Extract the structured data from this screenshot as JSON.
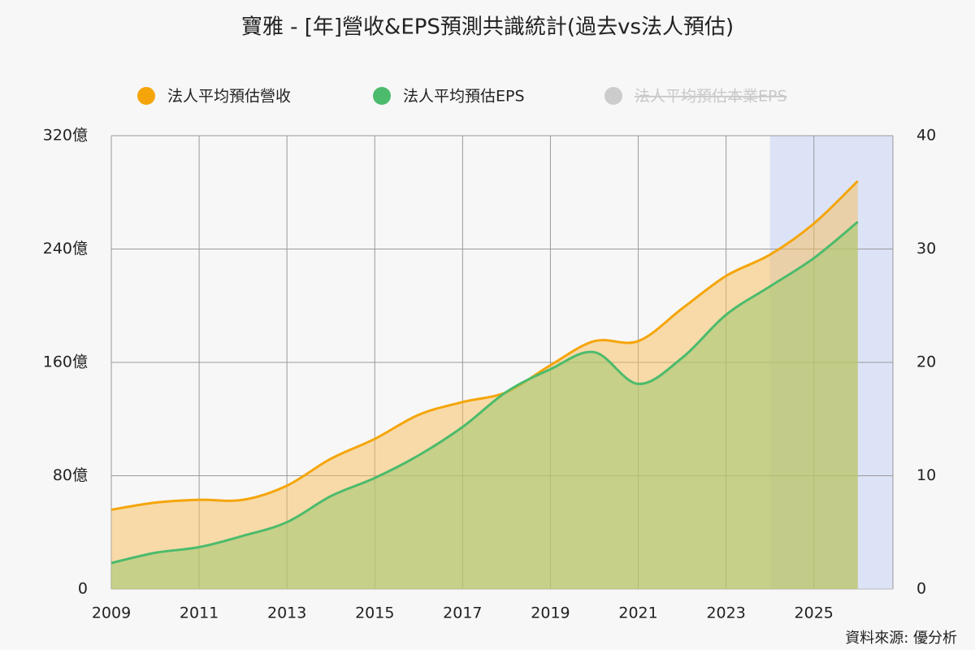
{
  "chart_data": {
    "type": "area",
    "title": "寶雅 - [年]營收&EPS預測共識統計(過去vs法人預估)",
    "source": "資料來源: 優分析",
    "x": [
      2009,
      2010,
      2011,
      2012,
      2013,
      2014,
      2015,
      2016,
      2017,
      2018,
      2019,
      2020,
      2021,
      2022,
      2023,
      2024,
      2025,
      2026
    ],
    "xlim": [
      2009,
      2026.8
    ],
    "xticks": [
      2009,
      2011,
      2013,
      2015,
      2017,
      2019,
      2021,
      2023,
      2025
    ],
    "ylim": [
      0,
      320
    ],
    "yticks": [
      0,
      {
        "value": 80,
        "label": "80億"
      },
      {
        "value": 160,
        "label": "160億"
      },
      {
        "value": 240,
        "label": "240億"
      },
      {
        "value": 320,
        "label": "320億"
      }
    ],
    "y2lim": [
      0,
      40
    ],
    "y2ticks": [
      0,
      10,
      20,
      30,
      40
    ],
    "forecast_start": 2024,
    "grid": true,
    "legend": "top",
    "series": [
      {
        "name": "法人平均預估營收",
        "color": "#f5a50a",
        "values": [
          56,
          61,
          63,
          63,
          73,
          92,
          106,
          123,
          132,
          139,
          158,
          175,
          175,
          198,
          221,
          236,
          258,
          288
        ]
      },
      {
        "name": "法人平均預估EPS",
        "color": "#4cbb6c",
        "axis": "y2",
        "values": [
          2.3,
          3.2,
          3.7,
          4.7,
          5.9,
          8.2,
          9.8,
          11.8,
          14.3,
          17.4,
          19.4,
          20.9,
          18.1,
          20.4,
          24.2,
          26.7,
          29.2,
          32.4
        ]
      }
    ],
    "hidden_series": [
      {
        "name": "法人平均預估本業EPS",
        "color": "#cccccc"
      }
    ]
  }
}
